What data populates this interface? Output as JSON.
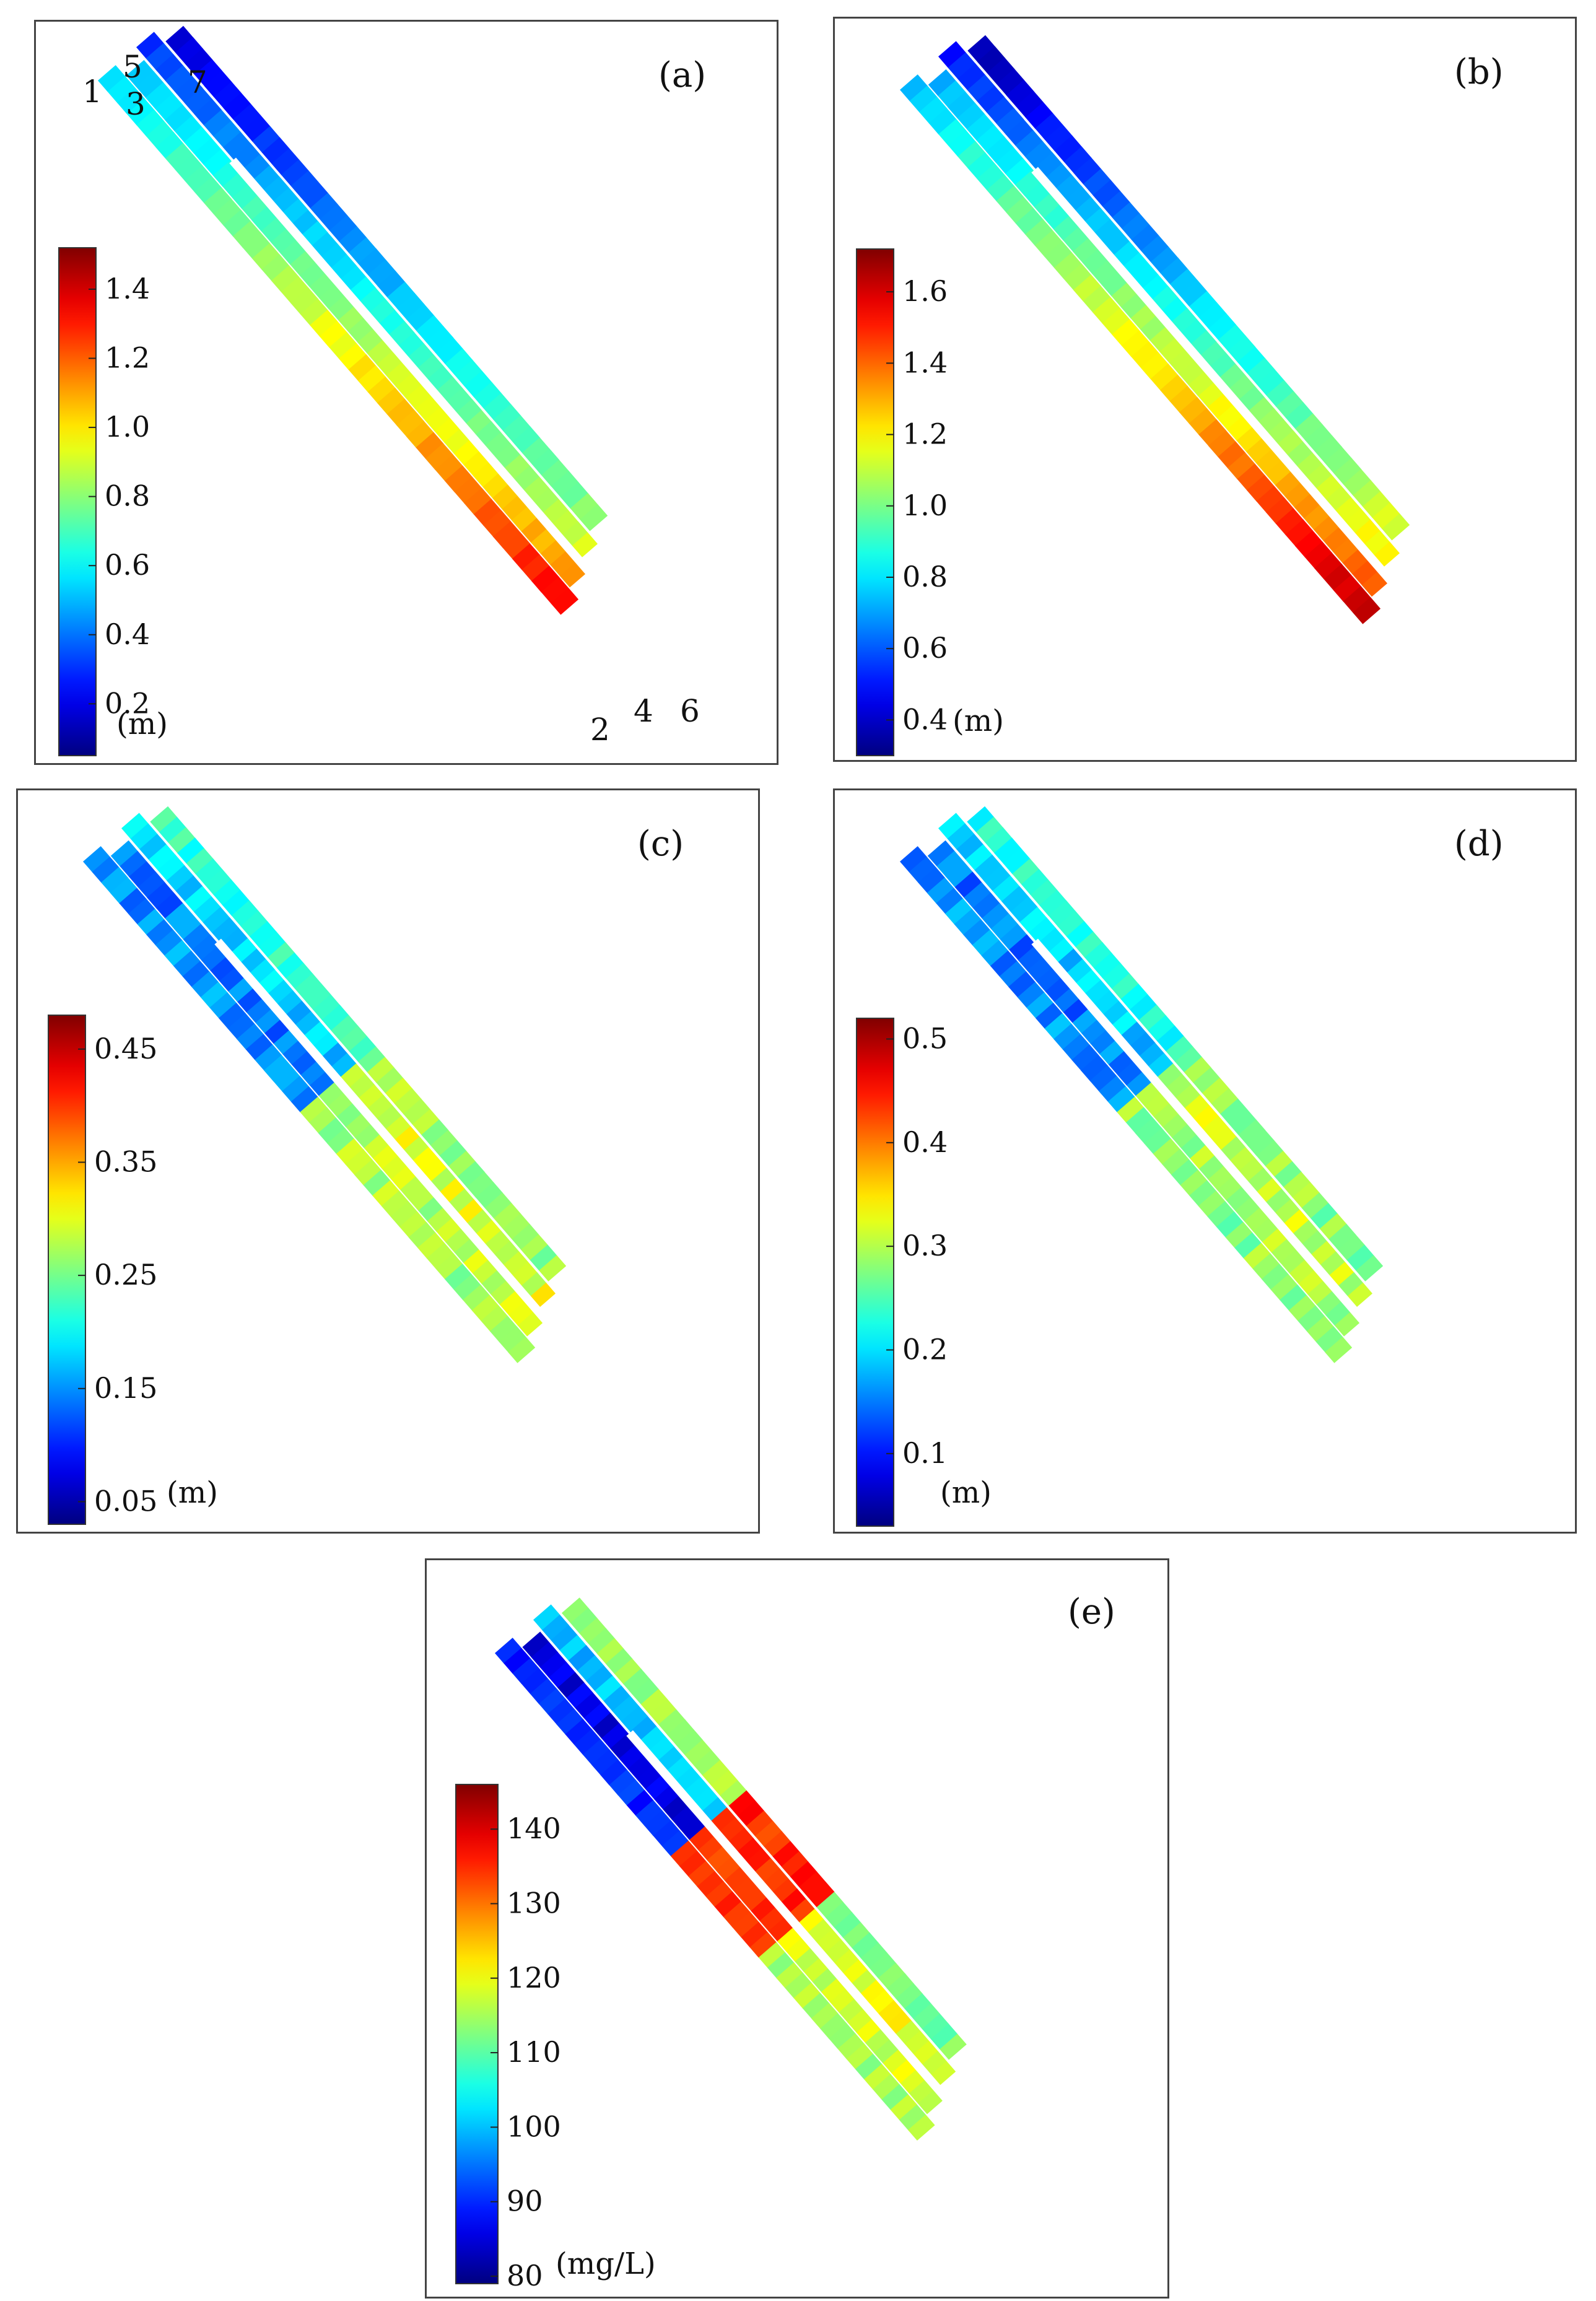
{
  "chart_data": [
    {
      "type": "heatmap",
      "panel_label": "(a)",
      "unit": "(m)",
      "colormap": "jet",
      "colorbar_ticks": [
        "0.2",
        "0.4",
        "0.6",
        "0.8",
        "1.0",
        "1.2",
        "1.4"
      ],
      "colorbar_range": [
        0.05,
        1.52
      ],
      "transect_labels": [
        "1",
        "5",
        "3",
        "7",
        "2",
        "4",
        "6"
      ],
      "trend": "values increase along transects from NW to SE",
      "transect_values": [
        {
          "label": "1",
          "start": 0.55,
          "end": 1.35
        },
        {
          "label": "3",
          "start": 0.5,
          "end": 1.15
        },
        {
          "label": "5",
          "start": 0.3,
          "end": 0.95
        },
        {
          "label": "7",
          "start": 0.15,
          "end": 0.85
        }
      ]
    },
    {
      "type": "heatmap",
      "panel_label": "(b)",
      "unit": "(m)",
      "colormap": "jet",
      "colorbar_ticks": [
        "0.4",
        "0.6",
        "0.8",
        "1.0",
        "1.2",
        "1.4",
        "1.6"
      ],
      "colorbar_range": [
        0.3,
        1.72
      ],
      "trend": "values increase along transects from NW to SE",
      "transect_values": [
        {
          "label": "1",
          "start": 0.75,
          "end": 1.65
        },
        {
          "label": "3",
          "start": 0.7,
          "end": 1.45
        },
        {
          "label": "5",
          "start": 0.5,
          "end": 1.25
        },
        {
          "label": "7",
          "start": 0.35,
          "end": 1.2
        }
      ]
    },
    {
      "type": "heatmap",
      "panel_label": "(c)",
      "unit": "(m)",
      "colormap": "jet",
      "colorbar_ticks": [
        "0.05",
        "0.15",
        "0.25",
        "0.35",
        "0.45"
      ],
      "colorbar_range": [
        0.03,
        0.48
      ],
      "trend": "low values in NW half, higher and noisier values in SE half",
      "transect_values": [
        {
          "label": "1",
          "start": 0.15,
          "end": 0.27
        },
        {
          "label": "3",
          "start": 0.14,
          "end": 0.28
        },
        {
          "label": "5",
          "start": 0.18,
          "end": 0.3
        },
        {
          "label": "7",
          "start": 0.22,
          "end": 0.27
        }
      ]
    },
    {
      "type": "heatmap",
      "panel_label": "(d)",
      "unit": "(m)",
      "colormap": "jet",
      "colorbar_ticks": [
        "0.1",
        "0.2",
        "0.3",
        "0.4",
        "0.5"
      ],
      "colorbar_range": [
        0.03,
        0.52
      ],
      "trend": "low values in NW half, higher and noisier values in SE half",
      "transect_values": [
        {
          "label": "1",
          "start": 0.16,
          "end": 0.28
        },
        {
          "label": "3",
          "start": 0.15,
          "end": 0.29
        },
        {
          "label": "5",
          "start": 0.19,
          "end": 0.31
        },
        {
          "label": "7",
          "start": 0.23,
          "end": 0.28
        }
      ]
    },
    {
      "type": "heatmap",
      "panel_label": "(e)",
      "unit": "(mg/L)",
      "colormap": "jet",
      "colorbar_ticks": [
        "80",
        "90",
        "100",
        "110",
        "120",
        "130",
        "140"
      ],
      "colorbar_range": [
        79,
        146
      ],
      "trend": "low values NW, sharp jump to high values midway, moderate values SE",
      "transect_values": [
        {
          "label": "1",
          "start": 90,
          "end": 115
        },
        {
          "label": "3",
          "start": 86,
          "end": 118
        },
        {
          "label": "5",
          "start": 100,
          "end": 120
        },
        {
          "label": "7",
          "start": 115,
          "end": 112
        }
      ]
    }
  ]
}
